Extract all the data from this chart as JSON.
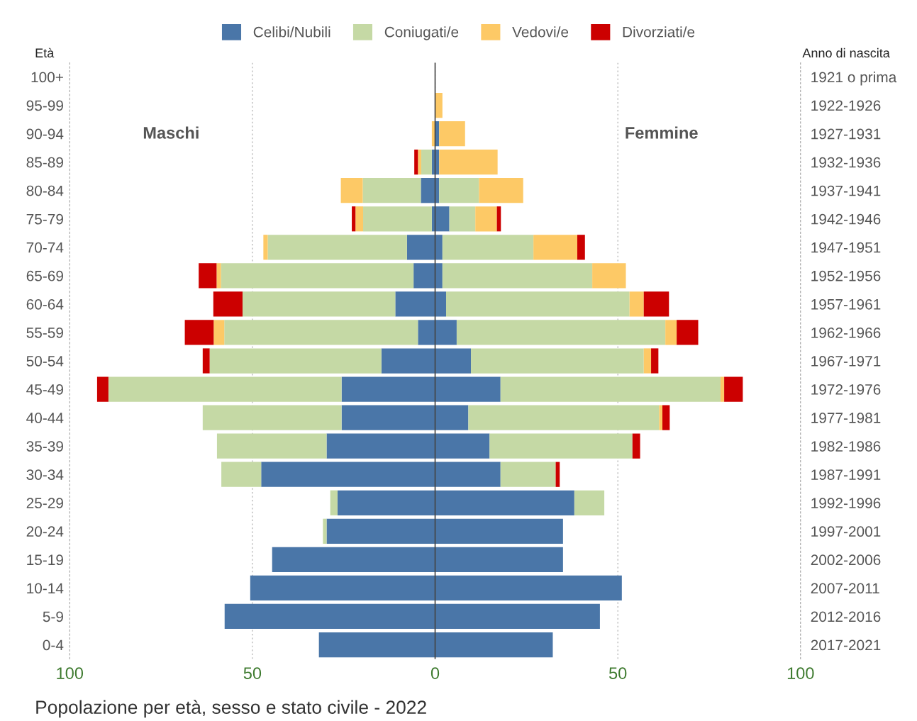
{
  "chart_data": {
    "type": "bar",
    "orientation": "horizontal",
    "stacked": true,
    "title": "Popolazione per età, sesso e stato civile - 2022",
    "ylabel": "Età",
    "y2label": "Anno di nascita",
    "categories": [
      "100+",
      "95-99",
      "90-94",
      "85-89",
      "80-84",
      "75-79",
      "70-74",
      "65-69",
      "60-64",
      "55-59",
      "50-54",
      "45-49",
      "40-44",
      "35-39",
      "30-34",
      "25-29",
      "20-24",
      "15-19",
      "10-14",
      "5-9",
      "0-4"
    ],
    "y2_categories": [
      "1921 o prima",
      "1922-1926",
      "1927-1931",
      "1932-1936",
      "1937-1941",
      "1942-1946",
      "1947-1951",
      "1952-1956",
      "1957-1961",
      "1962-1966",
      "1967-1971",
      "1972-1976",
      "1977-1981",
      "1982-1986",
      "1987-1991",
      "1992-1996",
      "1997-2001",
      "2002-2006",
      "2007-2011",
      "2012-2016",
      "2017-2021"
    ],
    "series": [
      {
        "name": "Celibi/Nubili",
        "color": "#4a76a8",
        "values": [
          0,
          0,
          1.1,
          1.1,
          1.1,
          3.9,
          2.0,
          2.0,
          3.0,
          5.9,
          9.8,
          17.9,
          9.1,
          14.9,
          17.9,
          38.1,
          35.0,
          35.0,
          51.1,
          45.1,
          32.2
        ]
      },
      {
        "name": "Coniugati/e",
        "color": "#c5d9a5",
        "values": [
          0,
          0,
          0,
          0,
          10.9,
          7.1,
          24.9,
          41.0,
          50.2,
          57.1,
          47.3,
          60.2,
          52.2,
          39.1,
          15.1,
          8.2,
          0,
          0,
          0,
          0,
          0
        ]
      },
      {
        "name": "Vedovi/e",
        "color": "#fdc966",
        "values": [
          0,
          2.0,
          7.1,
          16.0,
          12.1,
          5.9,
          12.0,
          9.2,
          3.9,
          3.1,
          2.0,
          1.0,
          0.9,
          0,
          0,
          0,
          0,
          0,
          0,
          0,
          0
        ]
      },
      {
        "name": "Divorziati/e",
        "color": "#cc0000",
        "values": [
          0,
          0,
          0,
          0,
          0,
          1.1,
          2.1,
          0,
          6.9,
          5.9,
          2.0,
          5.1,
          2.0,
          2.1,
          1.1,
          0,
          0,
          0,
          0,
          0,
          0
        ]
      },
      {
        "color": "#4a76a8",
        "values": [
          0,
          0,
          0,
          -0.9,
          -3.9,
          -0.9,
          -7.7,
          -5.9,
          -10.9,
          -4.7,
          -14.7,
          -25.6,
          -25.6,
          -29.7,
          -47.6,
          -26.7,
          -29.7,
          -44.6,
          -50.6,
          -57.6,
          -31.8
        ]
      },
      {
        "color": "#c5d9a5",
        "values": [
          0,
          0,
          0,
          -2.9,
          -15.9,
          -18.8,
          -38.1,
          -52.7,
          -41.8,
          -53.0,
          -47.0,
          -63.8,
          -38.0,
          -30.0,
          -10.9,
          -2.0,
          -1.0,
          0,
          0,
          0,
          0
        ]
      },
      {
        "color": "#fdc966",
        "values": [
          0,
          0,
          -0.9,
          -0.9,
          -6.0,
          -2.1,
          -1.2,
          -1.2,
          0,
          -2.9,
          0,
          0,
          0,
          0,
          0,
          0,
          0,
          0,
          0,
          0,
          0
        ]
      },
      {
        "color": "#cc0000",
        "values": [
          0,
          0,
          0,
          -1.0,
          0,
          -1.0,
          0,
          -4.9,
          -8.0,
          -7.9,
          -1.9,
          -3.1,
          0,
          0,
          0,
          0,
          0,
          0,
          0,
          0,
          0
        ]
      }
    ],
    "xlim": [
      -100,
      100
    ],
    "xticks": [
      {
        "value": -100,
        "label": "100"
      },
      {
        "value": -50,
        "label": "50"
      },
      0,
      50,
      100
    ],
    "ref_lines": [
      {
        "axis": "x",
        "value": 0,
        "color": "#444444"
      }
    ],
    "annotations": [
      "Maschi",
      "Femmine"
    ],
    "grid": "x",
    "legend": "top"
  }
}
